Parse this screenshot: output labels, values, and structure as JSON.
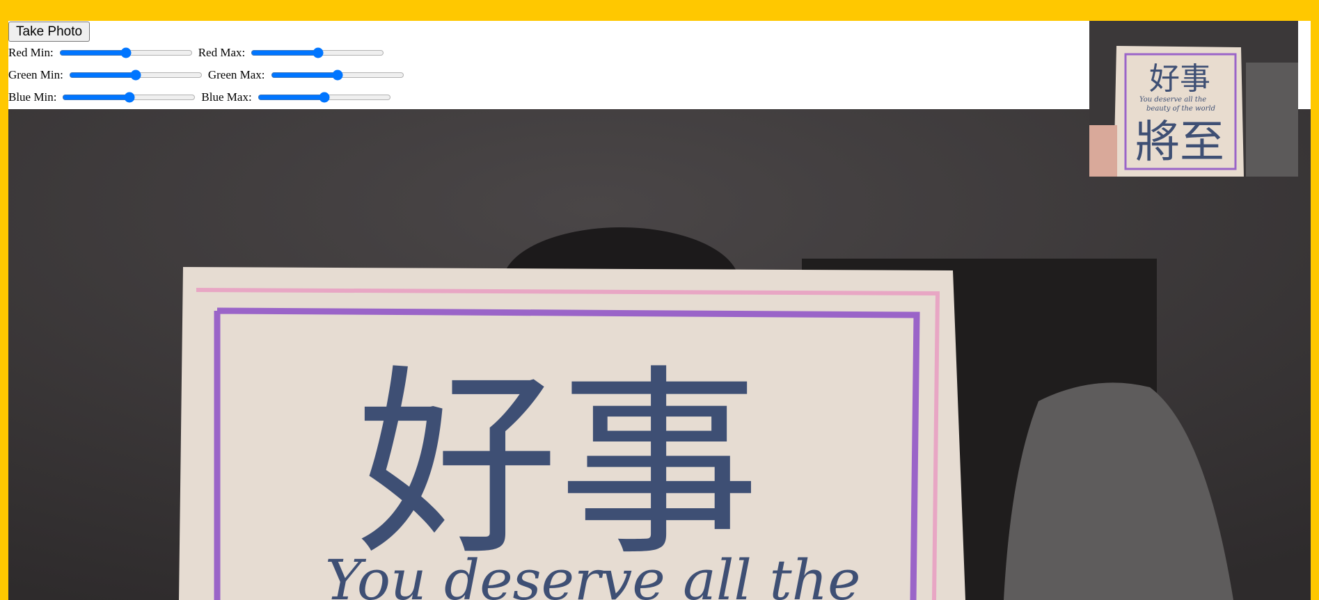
{
  "controls": {
    "button": "Take Photo",
    "range": [
      0,
      255
    ],
    "sliders": [
      {
        "label": "Red Min:",
        "value": 128
      },
      {
        "label": "Red Max:",
        "value": 128
      },
      {
        "label": "Green Min:",
        "value": 128
      },
      {
        "label": "Green Max:",
        "value": 128
      },
      {
        "label": "Blue Min:",
        "value": 128
      },
      {
        "label": "Blue Max:",
        "value": 128
      }
    ]
  },
  "photo": {
    "heading": "好事",
    "line": "You deserve all the"
  },
  "thumbnail": {
    "heading": "好事",
    "lines": [
      "You deserve all the",
      "beauty of the world"
    ],
    "footer": "將至"
  }
}
